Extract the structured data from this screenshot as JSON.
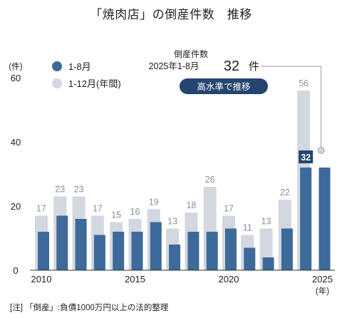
{
  "title": "「焼肉店」の倒産件数　推移",
  "note": "[注] 「倒産」:負債1000万円以上の法的整理",
  "colors": {
    "full_year": "#d3d7df",
    "jan_aug": "#3e6a9a",
    "label_full": "#8a8f97",
    "badge": "#24456f"
  },
  "callout": {
    "line1": "倒産件数",
    "line2": "2025年1-8月",
    "value": "32",
    "unit": "件",
    "badge": "高水準で推移"
  },
  "chart_data": {
    "type": "bar",
    "x": [
      2010,
      2011,
      2012,
      2013,
      2014,
      2015,
      2016,
      2017,
      2018,
      2019,
      2020,
      2021,
      2022,
      2023,
      2024,
      2025
    ],
    "series": [
      {
        "name": "1-8月",
        "values": [
          12,
          17,
          16,
          11,
          12,
          12,
          15,
          8,
          12,
          12,
          13,
          7,
          4,
          13,
          32,
          32
        ]
      },
      {
        "name": "1-12月(年間)",
        "values": [
          17,
          23,
          23,
          17,
          15,
          16,
          19,
          13,
          18,
          26,
          17,
          11,
          13,
          22,
          56,
          null
        ]
      }
    ],
    "data_labels_full_year": [
      "17",
      "23",
      "23",
      "17",
      "15",
      "16",
      "19",
      "13",
      "18",
      "26",
      "17",
      "11",
      "13",
      "22",
      "56",
      ""
    ],
    "highlight_label": "32",
    "y_unit_label": "(件)",
    "x_unit_label": "(年)",
    "ylim": [
      0,
      60
    ],
    "y_ticks": [
      "0",
      "20",
      "40",
      "60"
    ],
    "x_ticks": [
      "2010",
      "2015",
      "2020",
      "2025"
    ],
    "legend": [
      "1-8月",
      "1-12月(年間)"
    ],
    "legend_position": "top-left",
    "grid": false
  }
}
